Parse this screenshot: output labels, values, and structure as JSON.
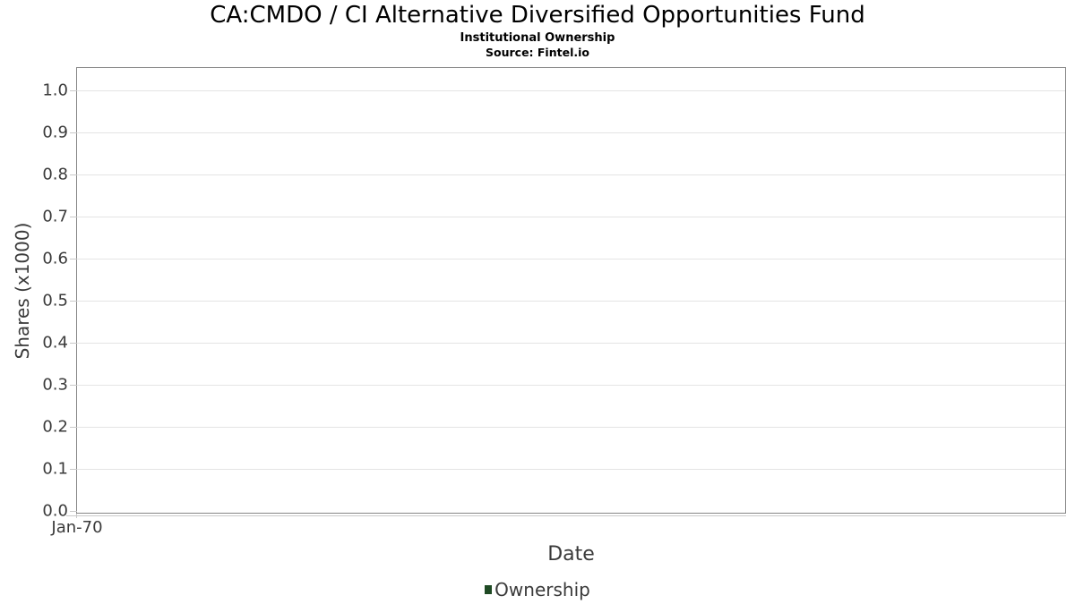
{
  "header": {
    "title": "CA:CMDO / CI Alternative Diversified Opportunities Fund",
    "subtitle": "Institutional Ownership",
    "source": "Source: Fintel.io"
  },
  "chart_data": {
    "type": "line",
    "title": "CA:CMDO / CI Alternative Diversified Opportunities Fund",
    "subtitle": "Institutional Ownership",
    "source": "Source: Fintel.io",
    "xlabel": "Date",
    "ylabel": "Shares (x1000)",
    "ylim": [
      0.0,
      1.05
    ],
    "yticks": [
      "0.0",
      "0.1",
      "0.2",
      "0.3",
      "0.4",
      "0.5",
      "0.6",
      "0.7",
      "0.8",
      "0.9",
      "1.0"
    ],
    "xticks": [
      "Jan-70"
    ],
    "grid": true,
    "legend_position": "bottom",
    "series": [
      {
        "name": "Ownership",
        "color": "#1f4a24",
        "x": [],
        "values": []
      }
    ],
    "style": {
      "gridline_color": "#e4e4e4",
      "border_color": "#868686",
      "tick_color": "#c9c9c9",
      "text_color": "#3a3a3a",
      "legend_marker_color": "#1f4a24"
    }
  }
}
